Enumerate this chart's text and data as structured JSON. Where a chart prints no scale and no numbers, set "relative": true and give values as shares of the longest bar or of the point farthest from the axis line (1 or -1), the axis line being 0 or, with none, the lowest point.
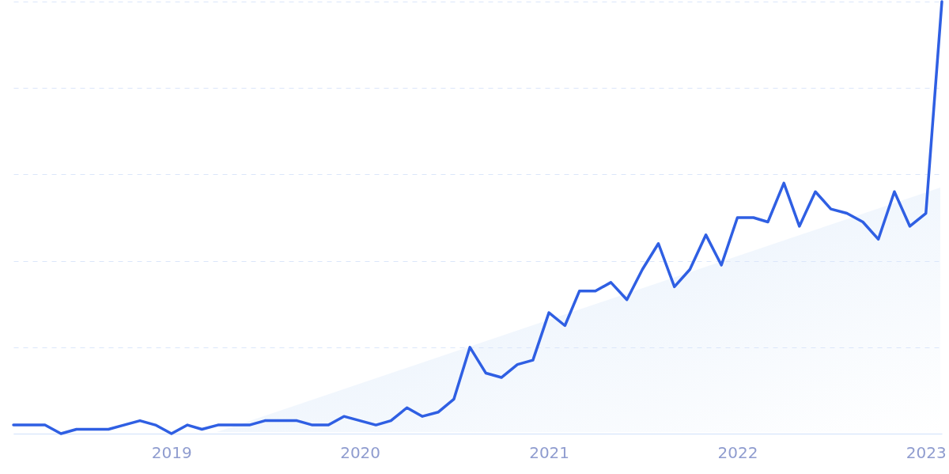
{
  "chart_data": {
    "type": "line",
    "relative": true,
    "grid": "y",
    "legend": false,
    "tick_labels": "x",
    "line_style": "solid",
    "marker": "none",
    "xlim": [
      "2018-03",
      "2023-02"
    ],
    "xticks": [
      "2019",
      "2020",
      "2021",
      "2022",
      "2023"
    ],
    "series": [
      {
        "color": "#2f5fe3",
        "x": [
          "2018-03",
          "2018-04",
          "2018-05",
          "2018-06",
          "2018-07",
          "2018-08",
          "2018-09",
          "2018-10",
          "2018-11",
          "2018-12",
          "2019-01",
          "2019-02",
          "2019-03",
          "2019-04",
          "2019-05",
          "2019-06",
          "2019-07",
          "2019-08",
          "2019-09",
          "2019-10",
          "2019-11",
          "2019-12",
          "2020-01",
          "2020-02",
          "2020-03",
          "2020-04",
          "2020-05",
          "2020-06",
          "2020-07",
          "2020-08",
          "2020-09",
          "2020-10",
          "2020-11",
          "2020-12",
          "2021-01",
          "2021-02",
          "2021-03",
          "2021-04",
          "2021-05",
          "2021-06",
          "2021-07",
          "2021-08",
          "2021-09",
          "2021-10",
          "2021-11",
          "2021-12",
          "2022-01",
          "2022-02",
          "2022-03",
          "2022-04",
          "2022-05",
          "2022-06",
          "2022-07",
          "2022-08",
          "2022-09",
          "2022-10",
          "2022-11",
          "2022-12",
          "2023-01",
          "2023-02"
        ],
        "values": [
          0.02,
          0.02,
          0.02,
          0,
          0.01,
          0.01,
          0.01,
          0.02,
          0.03,
          0.02,
          0,
          0.02,
          0.01,
          0.02,
          0.02,
          0.02,
          0.03,
          0.03,
          0.03,
          0.02,
          0.02,
          0.04,
          0.03,
          0.02,
          0.03,
          0.06,
          0.04,
          0.05,
          0.08,
          0.2,
          0.14,
          0.13,
          0.16,
          0.17,
          0.28,
          0.25,
          0.33,
          0.33,
          0.35,
          0.31,
          0.38,
          0.44,
          0.34,
          0.38,
          0.46,
          0.39,
          0.5,
          0.5,
          0.49,
          0.58,
          0.48,
          0.56,
          0.52,
          0.51,
          0.49,
          0.45,
          0.56,
          0.48,
          0.51,
          1
        ]
      }
    ]
  }
}
